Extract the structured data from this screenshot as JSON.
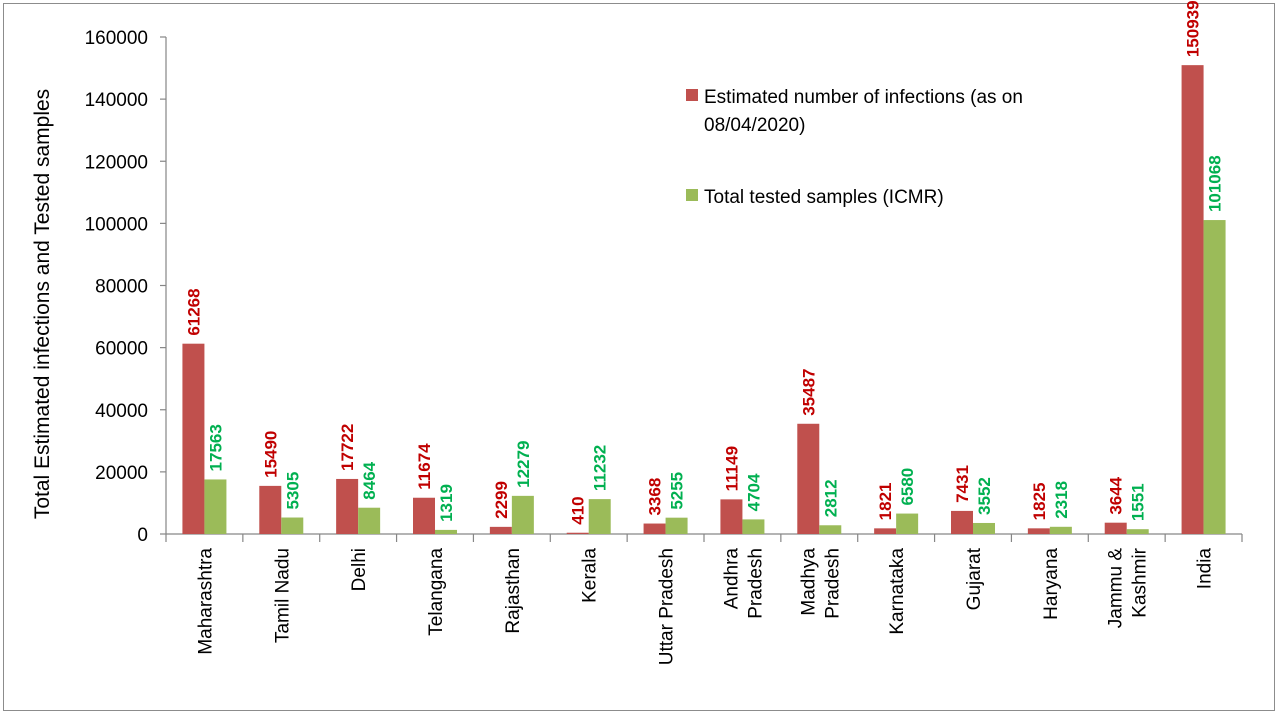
{
  "chart_data": {
    "type": "bar",
    "title": "",
    "xlabel": "",
    "ylabel": "Total  Estimated infections and Tested samples",
    "ylim": [
      0,
      160000
    ],
    "yticks": [
      0,
      20000,
      40000,
      60000,
      80000,
      100000,
      120000,
      140000,
      160000
    ],
    "grid": false,
    "legend_position": "top-right",
    "categories": [
      [
        "Maharashtra"
      ],
      [
        "Tamil Nadu"
      ],
      [
        "Delhi"
      ],
      [
        "Telangana"
      ],
      [
        "Rajasthan"
      ],
      [
        "Kerala"
      ],
      [
        "Uttar Pradesh"
      ],
      [
        "Andhra",
        "Pradesh"
      ],
      [
        "Madhya",
        "Pradesh"
      ],
      [
        "Karnataka"
      ],
      [
        "Gujarat"
      ],
      [
        "Haryana"
      ],
      [
        "Jammu &",
        "Kashmir"
      ],
      [
        "India"
      ]
    ],
    "series": [
      {
        "name_lines": [
          "Estimated number of infections (as on",
          "08/04/2020)"
        ],
        "color": "#c0504d",
        "label_color": "#c00000",
        "values": [
          61268,
          15490,
          17722,
          11674,
          2299,
          410,
          3368,
          11149,
          35487,
          1821,
          7431,
          1825,
          3644,
          150939
        ]
      },
      {
        "name_lines": [
          "Total tested samples (ICMR)"
        ],
        "color": "#9bbb59",
        "label_color": "#00b050",
        "values": [
          17563,
          5305,
          8464,
          1319,
          12279,
          11232,
          5255,
          4704,
          2812,
          6580,
          3552,
          2318,
          1551,
          101068
        ]
      }
    ]
  }
}
